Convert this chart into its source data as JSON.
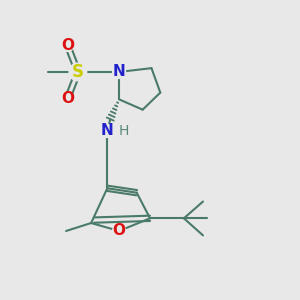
{
  "background_color": "#e8e8e8",
  "bond_color": "#4a7a68",
  "bond_width": 1.5,
  "S_color": "#cccc00",
  "N_color": "#2222cc",
  "O_color": "#dd1111",
  "H_color": "#5a8a7a",
  "font_size_atom": 11,
  "layout": {
    "figsize": [
      3.0,
      3.0
    ],
    "dpi": 100,
    "xlim": [
      0,
      1
    ],
    "ylim": [
      0,
      1
    ]
  }
}
